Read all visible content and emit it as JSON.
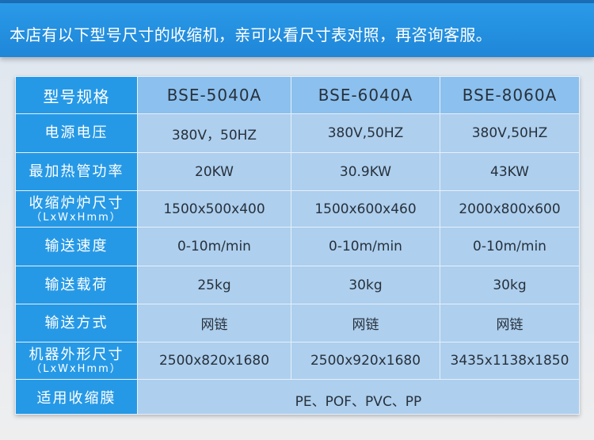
{
  "banner": {
    "title": "本店有以下型号尺寸的收缩机，亲可以看尺寸表对照，再咨询客服。"
  },
  "colors": {
    "banner": "#2699e6",
    "header_cell": "#2699e6",
    "model_row": "#8cc0ee",
    "data_cell": "#aecfee"
  },
  "table": {
    "header": {
      "label": "型号规格",
      "models": [
        "BSE-5040A",
        "BSE-6040A",
        "BSE-8060A"
      ]
    },
    "rows": [
      {
        "label": "电源电压",
        "sub": "",
        "values": [
          "380V，50HZ",
          "380V,50HZ",
          "380V,50HZ"
        ]
      },
      {
        "label": "最加热管功率",
        "sub": "",
        "values": [
          "20KW",
          "30.9KW",
          "43KW"
        ]
      },
      {
        "label": "收缩炉炉尺寸",
        "sub": "（LxWxHmm）",
        "values": [
          "1500x500x400",
          "1500x600x460",
          "2000x800x600"
        ]
      },
      {
        "label": "输送速度",
        "sub": "",
        "values": [
          "0-10m/min",
          "0-10m/min",
          "0-10m/min"
        ]
      },
      {
        "label": "输送载荷",
        "sub": "",
        "values": [
          "25kg",
          "30kg",
          "30kg"
        ]
      },
      {
        "label": "输送方式",
        "sub": "",
        "values": [
          "网链",
          "网链",
          "网链"
        ]
      },
      {
        "label": "机器外形尺寸",
        "sub": "（LxWxHmm）",
        "values": [
          "2500x820x1680",
          "2500x920x1680",
          "3435x1138x1850"
        ]
      }
    ],
    "film": {
      "label": "适用收缩膜",
      "value": "PE、POF、PVC、PP"
    }
  }
}
